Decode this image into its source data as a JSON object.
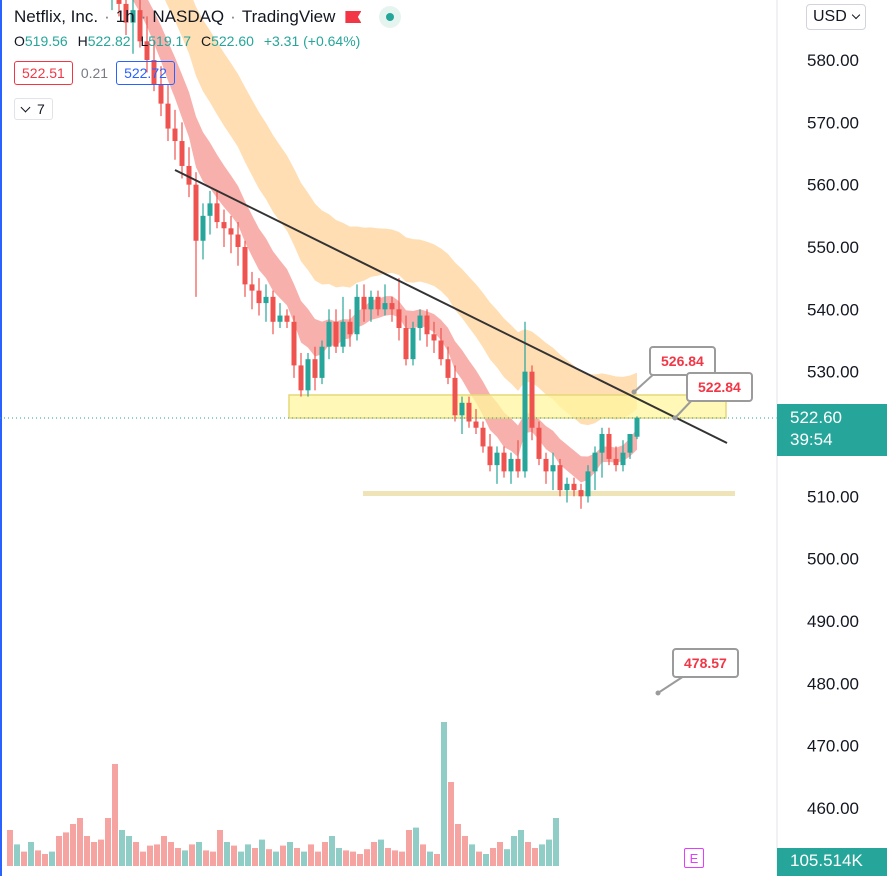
{
  "legend": {
    "symbol": "Netflix, Inc.",
    "interval": "1h",
    "exchange": "NASDAQ",
    "source": "TradingView"
  },
  "ohlc": {
    "o_label": "O",
    "o": "519.56",
    "h_label": "H",
    "h": "522.82",
    "l_label": "L",
    "l": "519.17",
    "c_label": "C",
    "c": "522.60",
    "change": "+3.31 (+0.64%)"
  },
  "bid": "522.51",
  "spread": "0.21",
  "ask": "522.72",
  "indicators_count": "7",
  "currency": "USD",
  "last_price": "522.60",
  "countdown": "39:54",
  "volume": "105.514K",
  "earnings_marker": "E",
  "callouts": [
    "526.84",
    "522.84",
    "478.57"
  ],
  "colors": {
    "up": "#26a69a",
    "down": "#ef5350",
    "up_volume": "#8fcdc6",
    "down_volume": "#f5a4a2",
    "fast_band": "#f7a29d",
    "slow_band": "#ffd8a6",
    "zone": "#fff59d",
    "trendline": "#333333"
  },
  "chart_data": {
    "type": "candlestick",
    "y_axis_ticks": [
      "580.00",
      "570.00",
      "560.00",
      "550.00",
      "540.00",
      "530.00",
      "510.00",
      "500.00",
      "490.00",
      "480.00",
      "470.00",
      "460.00"
    ],
    "ylim": [
      455,
      597
    ],
    "candles": [
      [
        596,
        600,
        592,
        594
      ],
      [
        594,
        598,
        590,
        595
      ],
      [
        595,
        599,
        591,
        592
      ],
      [
        592,
        596,
        588,
        593
      ],
      [
        593,
        596,
        587,
        589
      ],
      [
        589,
        593,
        584,
        586
      ],
      [
        586,
        590,
        581,
        588
      ],
      [
        588,
        591,
        582,
        583
      ],
      [
        583,
        587,
        578,
        580
      ],
      [
        580,
        583,
        575,
        576
      ],
      [
        576,
        579,
        571,
        573
      ],
      [
        573,
        576,
        567,
        569
      ],
      [
        569,
        572,
        564,
        567
      ],
      [
        567,
        570,
        561,
        563
      ],
      [
        563,
        566,
        558,
        560
      ],
      [
        560,
        562,
        542,
        551
      ],
      [
        551,
        557,
        548,
        555
      ],
      [
        555,
        559,
        552,
        557
      ],
      [
        557,
        559,
        553,
        554
      ],
      [
        554,
        556,
        550,
        553
      ],
      [
        553,
        555,
        549,
        552
      ],
      [
        552,
        554,
        547,
        550
      ],
      [
        550,
        551,
        542,
        544
      ],
      [
        544,
        546,
        540,
        543
      ],
      [
        543,
        545,
        539,
        541
      ],
      [
        541,
        544,
        538,
        542
      ],
      [
        542,
        543,
        536,
        538
      ],
      [
        538,
        541,
        537,
        539
      ],
      [
        539,
        540,
        537,
        538
      ],
      [
        538,
        539,
        529,
        531
      ],
      [
        531,
        533,
        526,
        527
      ],
      [
        527,
        533,
        526,
        532
      ],
      [
        532,
        534,
        527,
        529
      ],
      [
        529,
        535,
        528,
        534
      ],
      [
        534,
        540,
        532,
        538
      ],
      [
        538,
        540,
        533,
        534
      ],
      [
        534,
        542,
        533,
        538
      ],
      [
        538,
        540,
        534,
        536
      ],
      [
        536,
        544,
        535,
        542
      ],
      [
        542,
        544,
        538,
        540
      ],
      [
        540,
        543,
        538,
        542
      ],
      [
        542,
        543,
        539,
        540
      ],
      [
        540,
        544,
        539,
        541
      ],
      [
        541,
        542,
        538,
        540
      ],
      [
        540,
        545,
        535,
        537
      ],
      [
        537,
        539,
        531,
        532
      ],
      [
        532,
        538,
        531,
        537
      ],
      [
        537,
        540,
        535,
        539
      ],
      [
        539,
        540,
        534,
        536
      ],
      [
        536,
        538,
        533,
        535
      ],
      [
        535,
        537,
        531,
        532
      ],
      [
        532,
        534,
        528,
        529
      ],
      [
        529,
        531,
        522,
        523
      ],
      [
        523,
        526,
        520,
        525
      ],
      [
        525,
        526,
        521,
        522
      ],
      [
        522,
        524,
        520,
        521
      ],
      [
        521,
        522,
        517,
        518
      ],
      [
        518,
        520,
        514,
        515
      ],
      [
        515,
        518,
        512,
        517
      ],
      [
        517,
        518,
        513,
        514
      ],
      [
        514,
        517,
        512,
        516
      ],
      [
        516,
        519,
        513,
        514
      ],
      [
        514,
        538,
        513,
        530
      ],
      [
        530,
        531,
        519,
        521
      ],
      [
        521,
        522,
        515,
        516
      ],
      [
        516,
        517,
        512,
        514
      ],
      [
        514,
        517,
        511,
        515
      ],
      [
        515,
        516,
        510,
        511
      ],
      [
        511,
        513,
        509,
        512
      ],
      [
        512,
        513,
        510,
        511
      ],
      [
        511,
        512,
        508,
        510
      ],
      [
        510,
        515,
        509,
        514
      ],
      [
        514,
        518,
        511,
        517
      ],
      [
        517,
        521,
        513,
        520
      ],
      [
        520,
        521,
        515,
        516
      ],
      [
        516,
        518,
        514,
        515
      ],
      [
        515,
        519,
        514,
        517
      ],
      [
        517,
        520,
        516,
        520
      ],
      [
        519.56,
        522.82,
        519.17,
        522.6
      ]
    ],
    "volumes": [
      30,
      18,
      12,
      20,
      13,
      10,
      12,
      25,
      28,
      35,
      40,
      25,
      20,
      22,
      40,
      85,
      30,
      25,
      20,
      12,
      17,
      18,
      25,
      20,
      15,
      13,
      18,
      20,
      13,
      12,
      30,
      20,
      17,
      12,
      18,
      15,
      22,
      14,
      12,
      17,
      20,
      15,
      12,
      18,
      12,
      20,
      25,
      15,
      13,
      12,
      10,
      14,
      20,
      22,
      15,
      13,
      12,
      30,
      32,
      18,
      12,
      10,
      120,
      70,
      35,
      25,
      18,
      12,
      10,
      15,
      20,
      14,
      25,
      30,
      20,
      15,
      18,
      22,
      40
    ]
  }
}
